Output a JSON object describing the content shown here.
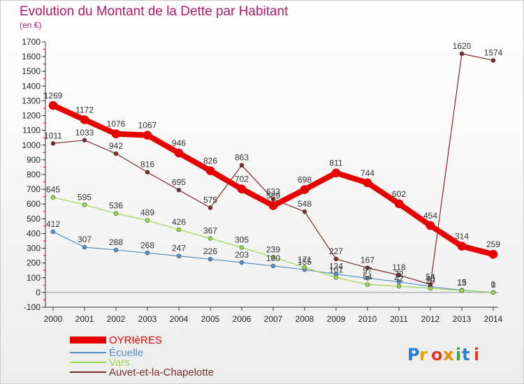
{
  "chart_data": {
    "type": "line",
    "title": "Evolution du Montant de la Dette par Habitant",
    "subtitle": "(en €)",
    "xlabel": "",
    "ylabel": "",
    "x": [
      "2000",
      "2001",
      "2002",
      "2003",
      "2004",
      "2005",
      "2006",
      "2007",
      "2008",
      "2009",
      "2010",
      "2011",
      "2012",
      "2013",
      "2014"
    ],
    "ylim": [
      -100,
      1700
    ],
    "yticks": [
      -100,
      0,
      100,
      200,
      300,
      400,
      500,
      600,
      700,
      800,
      900,
      1000,
      1100,
      1200,
      1300,
      1400,
      1500,
      1600,
      1700
    ],
    "grid": false,
    "legend_position": "bottom-left",
    "series": [
      {
        "name": "OYRIèRES",
        "color": "#e60000",
        "values": [
          1269,
          1172,
          1076,
          1067,
          946,
          826,
          702,
          589,
          698,
          811,
          744,
          602,
          454,
          314,
          259
        ]
      },
      {
        "name": "Écuelle",
        "color": "#4f8fc9",
        "values": [
          412,
          307,
          288,
          268,
          247,
          226,
          203,
          180,
          155,
          124,
          97,
          72,
          40,
          15,
          0
        ]
      },
      {
        "name": "Vars",
        "color": "#9ad64a",
        "values": [
          645,
          595,
          536,
          489,
          426,
          367,
          305,
          239,
          171,
          101,
          54,
          42,
          29,
          13,
          1
        ]
      },
      {
        "name": "Auvet-et-la-Chapelotte",
        "color": "#7a2a2a",
        "values": [
          1011,
          1033,
          942,
          816,
          695,
          575,
          863,
          633,
          548,
          227,
          167,
          118,
          54,
          1620,
          1574
        ]
      }
    ]
  },
  "watermark": "Proxiti"
}
